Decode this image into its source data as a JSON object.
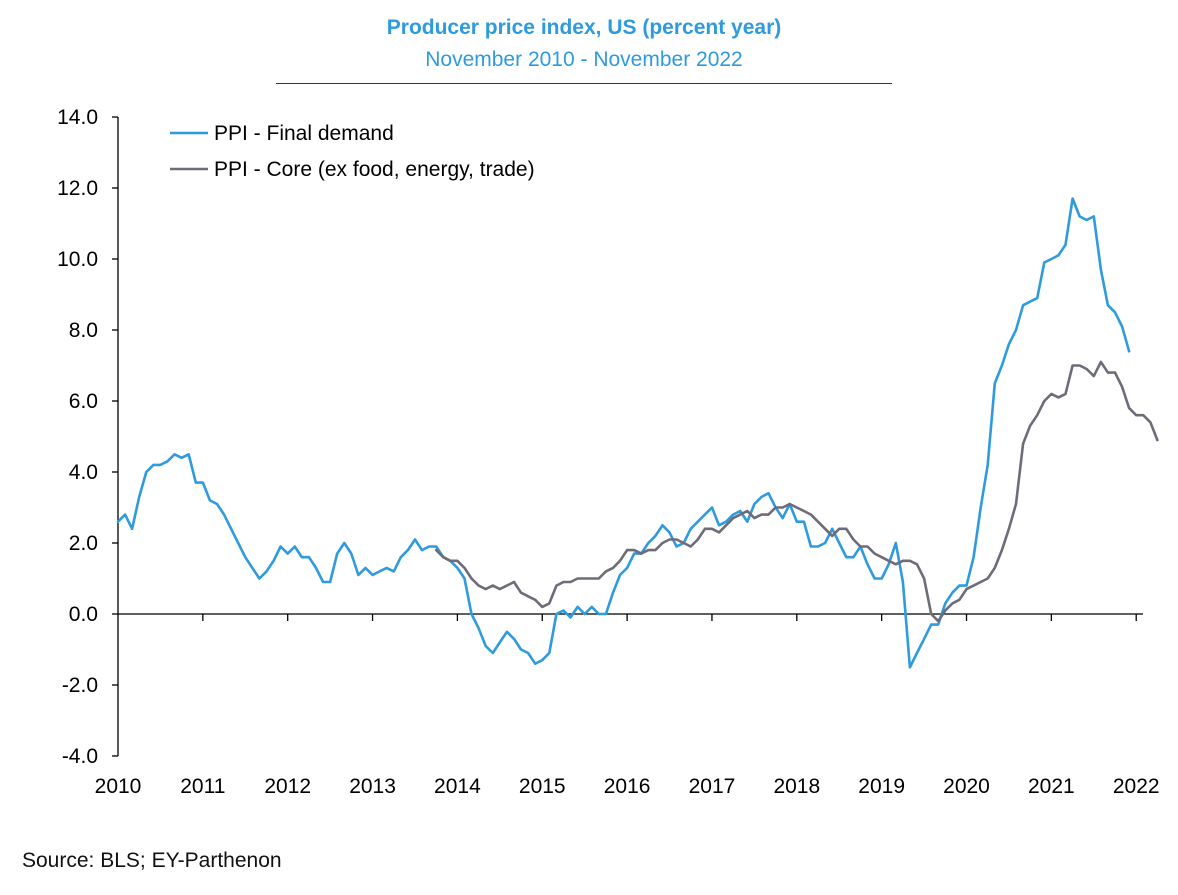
{
  "title": "Producer price index, US (percent year)",
  "subtitle": "November 2010 - November 2022",
  "source": "Source: BLS; EY-Parthenon",
  "chart_data": {
    "type": "line",
    "title": "Producer price index, US (percent year)",
    "subtitle": "November 2010 - November 2022",
    "xlabel": "",
    "ylabel": "",
    "ylim": [
      -4,
      14
    ],
    "yticks": [
      {
        "value": -4,
        "label": "-4.0"
      },
      {
        "value": -2,
        "label": "-2.0"
      },
      {
        "value": 0,
        "label": "0.0"
      },
      {
        "value": 2,
        "label": "2.0"
      },
      {
        "value": 4,
        "label": "4.0"
      },
      {
        "value": 6,
        "label": "6.0"
      },
      {
        "value": 8,
        "label": "8.0"
      },
      {
        "value": 10,
        "label": "10.0"
      },
      {
        "value": 12,
        "label": "12.0"
      },
      {
        "value": 14,
        "label": "14.0"
      }
    ],
    "xlim": [
      2010,
      2022.08
    ],
    "xticks": [
      "2010",
      "2011",
      "2012",
      "2013",
      "2014",
      "2015",
      "2016",
      "2017",
      "2018",
      "2019",
      "2020",
      "2021",
      "2022"
    ],
    "grid": false,
    "legend_position": "top-left",
    "series": [
      {
        "name": "PPI - Final demand",
        "color": "#2E9BDE",
        "x_start": 2010,
        "x_step_months": 1,
        "values": [
          2.6,
          2.8,
          2.4,
          3.3,
          4.0,
          4.2,
          4.2,
          4.3,
          4.5,
          4.4,
          4.5,
          3.7,
          3.7,
          3.2,
          3.1,
          2.8,
          2.4,
          2.0,
          1.6,
          1.3,
          1.0,
          1.2,
          1.5,
          1.9,
          1.7,
          1.9,
          1.6,
          1.6,
          1.3,
          0.9,
          0.9,
          1.7,
          2.0,
          1.7,
          1.1,
          1.3,
          1.1,
          1.2,
          1.3,
          1.2,
          1.6,
          1.8,
          2.1,
          1.8,
          1.9,
          1.9,
          1.6,
          1.5,
          1.3,
          1.0,
          0.0,
          -0.4,
          -0.9,
          -1.1,
          -0.8,
          -0.5,
          -0.7,
          -1.0,
          -1.1,
          -1.4,
          -1.3,
          -1.1,
          0.0,
          0.1,
          -0.1,
          0.2,
          0.0,
          0.2,
          0.0,
          0.0,
          0.6,
          1.1,
          1.3,
          1.7,
          1.7,
          2.0,
          2.2,
          2.5,
          2.3,
          1.9,
          2.0,
          2.4,
          2.6,
          2.8,
          3.0,
          2.5,
          2.6,
          2.8,
          2.9,
          2.6,
          3.1,
          3.3,
          3.4,
          3.0,
          2.7,
          3.1,
          2.6,
          2.6,
          1.9,
          1.9,
          2.0,
          2.4,
          2.0,
          1.6,
          1.6,
          1.9,
          1.4,
          1.0,
          1.0,
          1.4,
          2.0,
          0.9,
          -1.5,
          -1.1,
          -0.7,
          -0.3,
          -0.3,
          0.3,
          0.6,
          0.8,
          0.8,
          1.6,
          3.0,
          4.2,
          6.5,
          7.0,
          7.6,
          8.0,
          8.7,
          8.8,
          8.9,
          9.9,
          10.0,
          10.1,
          10.4,
          11.7,
          11.2,
          11.1,
          11.2,
          9.7,
          8.7,
          8.5,
          8.1,
          7.4
        ]
      },
      {
        "name": "PPI - Core (ex food, energy, trade)",
        "color": "#6E6C78",
        "x_start": 2013.75,
        "x_step_months": 1,
        "values": [
          1.8,
          1.6,
          1.5,
          1.5,
          1.3,
          1.0,
          0.8,
          0.7,
          0.8,
          0.7,
          0.8,
          0.9,
          0.6,
          0.5,
          0.4,
          0.2,
          0.3,
          0.8,
          0.9,
          0.9,
          1.0,
          1.0,
          1.0,
          1.0,
          1.2,
          1.3,
          1.5,
          1.8,
          1.8,
          1.7,
          1.8,
          1.8,
          2.0,
          2.1,
          2.1,
          2.0,
          1.9,
          2.1,
          2.4,
          2.4,
          2.3,
          2.5,
          2.7,
          2.8,
          2.9,
          2.7,
          2.8,
          2.8,
          3.0,
          3.0,
          3.1,
          3.0,
          2.9,
          2.8,
          2.6,
          2.4,
          2.2,
          2.4,
          2.4,
          2.1,
          1.9,
          1.9,
          1.7,
          1.6,
          1.5,
          1.4,
          1.5,
          1.5,
          1.4,
          1.0,
          0.0,
          -0.2,
          0.1,
          0.3,
          0.4,
          0.7,
          0.8,
          0.9,
          1.0,
          1.3,
          1.8,
          2.4,
          3.1,
          4.8,
          5.3,
          5.6,
          6.0,
          6.2,
          6.1,
          6.2,
          7.0,
          7.0,
          6.9,
          6.7,
          7.1,
          6.8,
          6.8,
          6.4,
          5.8,
          5.6,
          5.6,
          5.4,
          4.9
        ]
      }
    ]
  }
}
